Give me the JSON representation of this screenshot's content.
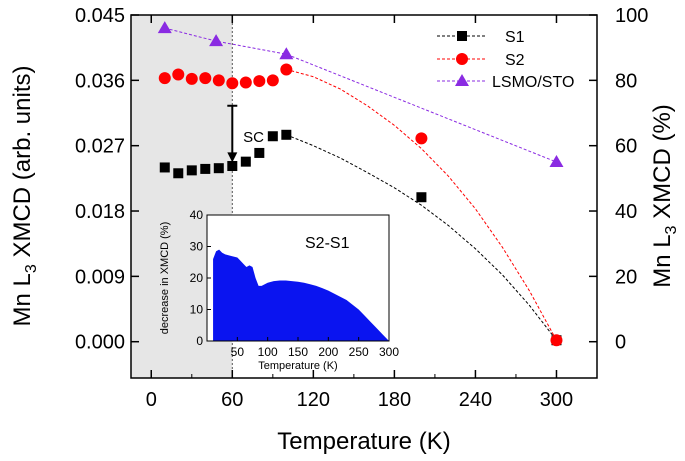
{
  "chart_data": {
    "type": "scatter",
    "xlabel": "Temperature (K)",
    "ylabel_left_parts": [
      "Mn L",
      "3",
      " XMCD (arb. units)"
    ],
    "ylabel_right_parts": [
      "Mn L",
      "3",
      " XMCD (%)"
    ],
    "xlim": [
      -15,
      330
    ],
    "ylim_left": [
      -0.005,
      0.045
    ],
    "ylim_right": [
      -11.11,
      100
    ],
    "x_ticks": [
      0,
      60,
      120,
      180,
      240,
      300
    ],
    "x_tick_labels": [
      "0",
      "60",
      "120",
      "180",
      "240",
      "300"
    ],
    "y_left_ticks": [
      0.0,
      0.009,
      0.018,
      0.027,
      0.036,
      0.045
    ],
    "y_left_tick_labels": [
      "0.000",
      "0.009",
      "0.018",
      "0.027",
      "0.036",
      "0.045"
    ],
    "y_right_ticks": [
      0,
      20,
      40,
      60,
      80,
      100
    ],
    "y_right_tick_labels": [
      "0",
      "20",
      "40",
      "60",
      "80",
      "100"
    ],
    "shaded_region": {
      "x_from": -15,
      "x_to": 60,
      "color": "#e6e6e6"
    },
    "legend_position": "top-right",
    "series": [
      {
        "name": "S1",
        "axis": "left",
        "marker": "square",
        "color": "#000000",
        "x": [
          10,
          20,
          30,
          40,
          50,
          60,
          70,
          80,
          90,
          100,
          200,
          300
        ],
        "y": [
          0.024,
          0.0232,
          0.0236,
          0.0238,
          0.0239,
          0.0242,
          0.0248,
          0.026,
          0.0283,
          0.0285,
          0.0199,
          0.0002
        ],
        "fit_x": [
          100,
          120,
          140,
          160,
          180,
          200,
          220,
          240,
          260,
          280,
          300
        ],
        "fit_y": [
          0.0285,
          0.027,
          0.0253,
          0.0233,
          0.0212,
          0.0188,
          0.016,
          0.0128,
          0.0092,
          0.005,
          0.0002
        ]
      },
      {
        "name": "S2",
        "axis": "left",
        "marker": "circle",
        "color": "#ff0000",
        "x": [
          10,
          20,
          30,
          40,
          50,
          60,
          70,
          80,
          90,
          100,
          200,
          300
        ],
        "y": [
          0.0363,
          0.0368,
          0.0362,
          0.0363,
          0.036,
          0.0356,
          0.0357,
          0.0359,
          0.036,
          0.0375,
          0.028,
          0.0002
        ],
        "fit_x": [
          100,
          120,
          140,
          160,
          180,
          200,
          220,
          240,
          260,
          280,
          300
        ],
        "fit_y": [
          0.0375,
          0.0365,
          0.0348,
          0.0325,
          0.0298,
          0.0266,
          0.0228,
          0.0183,
          0.013,
          0.007,
          0.0002
        ]
      },
      {
        "name": "LSMO/STO",
        "axis": "right",
        "marker": "triangle",
        "color": "#8a2be2",
        "x": [
          10,
          48,
          100,
          300
        ],
        "y": [
          96,
          92,
          88,
          55
        ]
      }
    ],
    "annotations": [
      {
        "text": "SC",
        "x": 68,
        "y": 0.0275,
        "arrow_from": [
          60,
          0.0325
        ],
        "arrow_to": [
          60,
          0.0247
        ]
      }
    ],
    "inset": {
      "type": "area",
      "title": "S2-S1",
      "xlabel": "Temperature (K)",
      "ylabel": "decrease in XMCD (%)",
      "xlim": [
        0,
        300
      ],
      "ylim": [
        0,
        40
      ],
      "x_ticks": [
        50,
        100,
        150,
        200,
        250,
        300
      ],
      "x_tick_labels": [
        "50",
        "100",
        "150",
        "200",
        "250",
        "300"
      ],
      "y_ticks": [
        0,
        10,
        20,
        30,
        40
      ],
      "y_tick_labels": [
        "0",
        "10",
        "20",
        "30",
        "40"
      ],
      "color": "#0a14f0",
      "x": [
        10,
        15,
        20,
        25,
        30,
        40,
        50,
        55,
        60,
        65,
        70,
        75,
        80,
        85,
        90,
        100,
        110,
        120,
        130,
        140,
        150,
        160,
        170,
        180,
        190,
        200,
        210,
        220,
        230,
        240,
        250,
        260,
        270,
        280,
        290,
        300
      ],
      "y": [
        26,
        28.5,
        29,
        28,
        27.5,
        27,
        26.5,
        25.5,
        24.5,
        23.5,
        24,
        23.5,
        20,
        17.5,
        17.5,
        18.5,
        19,
        19.2,
        19.2,
        19,
        18.8,
        18.5,
        18,
        17.5,
        16.8,
        16,
        15,
        14,
        13,
        11.5,
        10,
        8,
        6,
        4,
        2,
        0
      ]
    }
  }
}
